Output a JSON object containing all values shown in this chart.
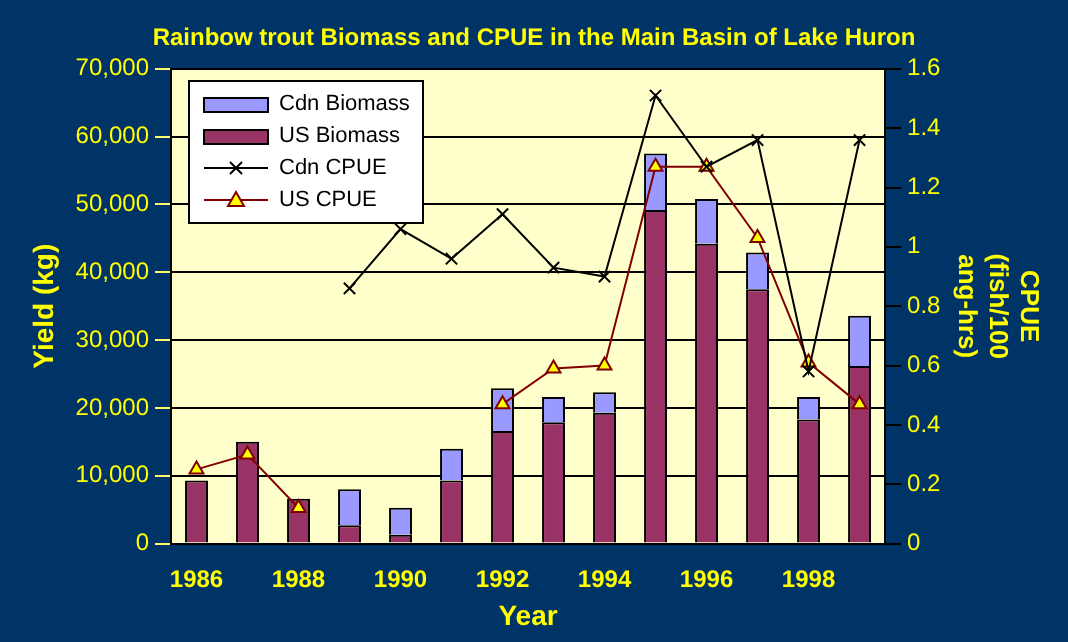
{
  "chart_data": {
    "type": "bar",
    "title": "Rainbow trout Biomass and CPUE in the Main Basin of Lake Huron",
    "xlabel": "Year",
    "ylabel": "Yield (kg)",
    "y2label": "CPUE (fish/100 ang-hrs)",
    "categories": [
      "1986",
      null,
      "1988",
      null,
      "1990",
      null,
      "1992",
      null,
      "1994",
      null,
      "1996",
      null,
      "1998",
      null
    ],
    "stacked": true,
    "grid": "y",
    "legend": "top left",
    "ylim": [
      0,
      70000
    ],
    "yticks": [
      {
        "value": 0,
        "label": "0"
      },
      {
        "value": 10000,
        "label": "10,000"
      },
      {
        "value": 20000,
        "label": "20,000"
      },
      {
        "value": 30000,
        "label": "30,000"
      },
      {
        "value": 40000,
        "label": "40,000"
      },
      {
        "value": 50000,
        "label": "50,000"
      },
      {
        "value": 60000,
        "label": "60,000"
      },
      {
        "value": 70000,
        "label": "70,000"
      }
    ],
    "y2lim": [
      0,
      1.6
    ],
    "y2ticks": [
      0,
      0.2,
      0.4,
      0.6,
      0.8,
      1,
      1.2,
      1.4,
      1.6
    ],
    "series": [
      {
        "name": "US Biomass",
        "color": "#993366",
        "values": [
          9300,
          15000,
          6600,
          2700,
          1300,
          9300,
          16600,
          17900,
          19300,
          49200,
          44200,
          37500,
          18300,
          26200
        ]
      },
      {
        "name": "Cdn Biomass",
        "color": "#9999ff",
        "values": [
          0,
          0,
          0,
          5300,
          4000,
          4700,
          6300,
          3700,
          3000,
          8300,
          6600,
          5400,
          3300,
          7400
        ]
      },
      {
        "name": "Cdn CPUE",
        "type": "line",
        "axis": "y2",
        "color": "#000000",
        "marker": "cross",
        "values": [
          null,
          null,
          null,
          0.86,
          1.06,
          0.96,
          1.11,
          0.93,
          0.9,
          1.51,
          1.27,
          1.36,
          0.58,
          1.36
        ]
      },
      {
        "name": "US CPUE",
        "type": "line",
        "axis": "y2",
        "color": "#800000",
        "marker": "triangle",
        "values": [
          0.25,
          0.3,
          0.12,
          null,
          null,
          null,
          0.47,
          0.59,
          0.6,
          1.27,
          1.27,
          1.03,
          0.61,
          0.47
        ]
      }
    ]
  }
}
